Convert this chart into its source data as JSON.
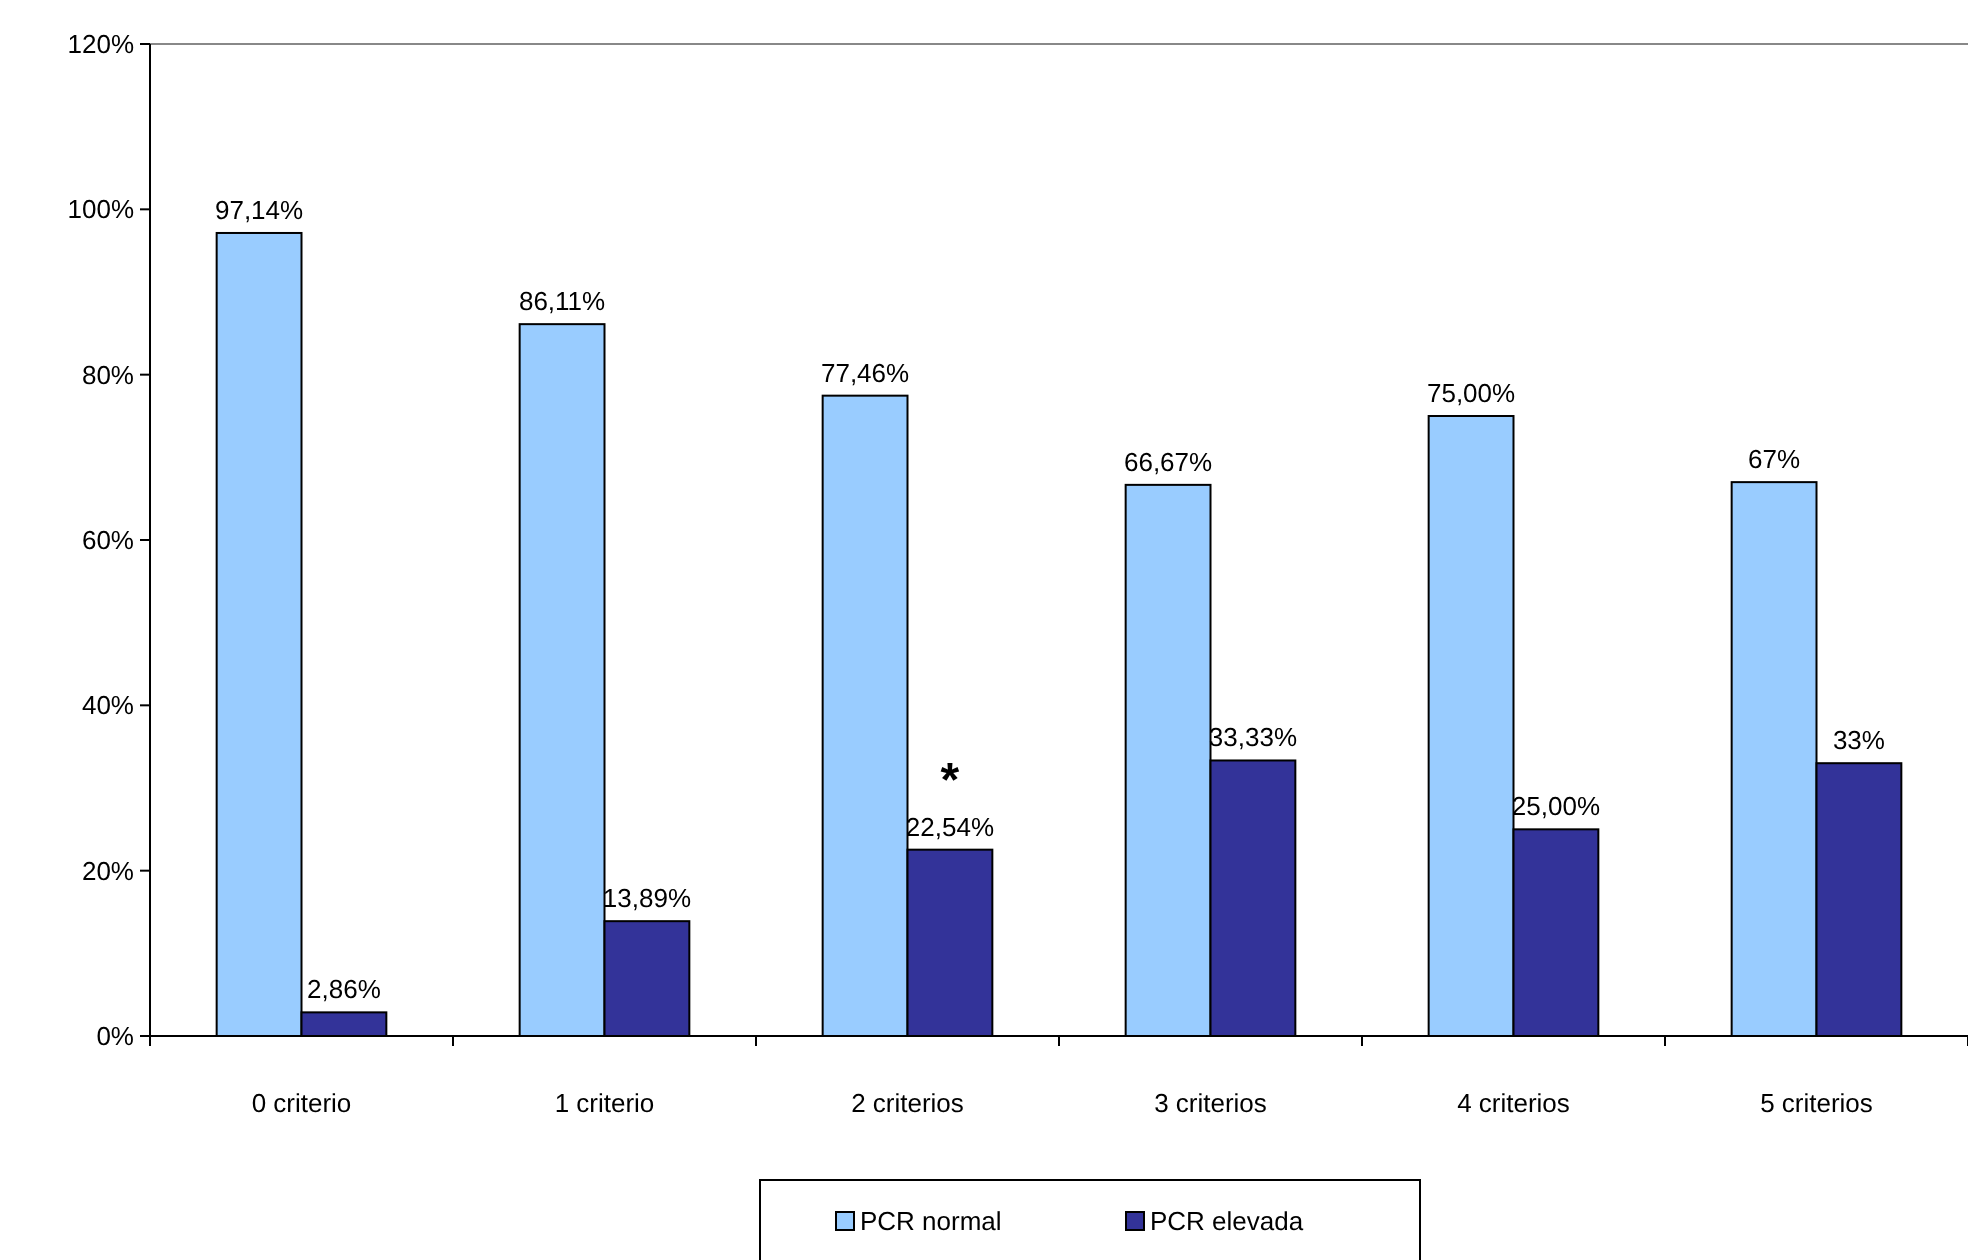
{
  "chart_data": {
    "type": "bar",
    "categories": [
      "0 criterio",
      "1 criterio",
      "2 criterios",
      "3 criterios",
      "4 criterios",
      "5 criterios"
    ],
    "series": [
      {
        "name": "PCR normal",
        "color": "#99ccff",
        "values": [
          97.14,
          86.11,
          77.46,
          66.67,
          75,
          67
        ],
        "value_labels": [
          "97,14%",
          "86,11%",
          "77,46%",
          "66,67%",
          "75,00%",
          "67%"
        ]
      },
      {
        "name": "PCR elevada",
        "color": "#333399",
        "values": [
          2.86,
          13.89,
          22.54,
          33.33,
          25,
          33
        ],
        "value_labels": [
          "2,86%",
          "13,89%",
          "22,54%",
          "33,33%",
          "25,00%",
          "33%"
        ]
      }
    ],
    "ylim": [
      0,
      120
    ],
    "yticks": [
      {
        "value": 0,
        "label": "0%"
      },
      {
        "value": 20,
        "label": "20%"
      },
      {
        "value": 40,
        "label": "40%"
      },
      {
        "value": 60,
        "label": "60%"
      },
      {
        "value": 80,
        "label": "80%"
      },
      {
        "value": 100,
        "label": "100%"
      },
      {
        "value": 120,
        "label": "120%"
      }
    ],
    "grid": false,
    "legend": "bottom",
    "annotations": [
      {
        "text": "*",
        "x": "2 criterios",
        "y": 29
      }
    ]
  }
}
